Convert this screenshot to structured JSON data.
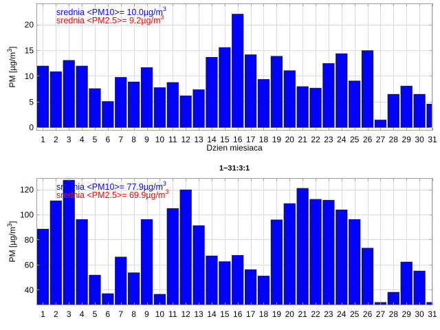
{
  "chart_data": [
    {
      "type": "bar",
      "title": "",
      "xlabel": "Dzien miesiaca",
      "ylabel": "PM [µg/m3]",
      "ylabel_main": "PM [µg/m",
      "ylabel_sup": "3",
      "ylabel_end": "]",
      "xlim": [
        0.5,
        31
      ],
      "ylim": [
        -0.65,
        24.1
      ],
      "grid": true,
      "yticks": [
        0,
        5,
        10,
        15,
        20
      ],
      "categories": [
        1,
        2,
        3,
        4,
        5,
        6,
        7,
        8,
        9,
        10,
        11,
        12,
        13,
        14,
        15,
        16,
        17,
        18,
        19,
        20,
        21,
        22,
        23,
        24,
        25,
        26,
        27,
        28,
        29,
        30,
        31
      ],
      "bar_color": "#0000ff",
      "values": [
        11.9,
        10.8,
        13.0,
        11.9,
        7.5,
        5.0,
        9.7,
        8.8,
        11.6,
        7.7,
        8.7,
        6.1,
        7.3,
        13.6,
        15.5,
        22.0,
        14.1,
        9.3,
        13.8,
        11.0,
        7.9,
        7.6,
        12.4,
        14.3,
        9.0,
        14.9,
        1.4,
        6.4,
        8.0,
        6.4,
        4.5
      ],
      "annotations": [
        {
          "text": "srednia <PM10>= 10.0µg/m",
          "sup": "3",
          "color": "#0000ff"
        },
        {
          "text": "srednia <PM2.5>= 9.2µg/m",
          "sup": "3",
          "color": "#ff0000"
        }
      ]
    },
    {
      "type": "bar",
      "title": "1−31:3:1",
      "xlabel": "",
      "ylabel": "PM [µg/m3]",
      "ylabel_main": "PM [µg/m",
      "ylabel_sup": "3",
      "ylabel_end": "]",
      "xlim": [
        0.5,
        31
      ],
      "ylim": [
        27.5,
        129.2
      ],
      "grid": true,
      "yticks": [
        40,
        60,
        80,
        100,
        120
      ],
      "categories": [
        1,
        2,
        3,
        4,
        5,
        6,
        7,
        8,
        9,
        10,
        11,
        12,
        13,
        14,
        15,
        16,
        17,
        18,
        19,
        20,
        21,
        22,
        23,
        24,
        25,
        26,
        27,
        28,
        29,
        30,
        31
      ],
      "bar_color": "#0000ff",
      "values": [
        88.3,
        110.9,
        127.4,
        96.0,
        51.5,
        36.7,
        66.0,
        53.4,
        96.0,
        36.2,
        104.8,
        119.7,
        91.1,
        66.9,
        62.3,
        67.3,
        55.9,
        50.8,
        95.7,
        108.7,
        120.9,
        112.1,
        111.4,
        103.7,
        96.0,
        73.1,
        29.7,
        37.8,
        62.0,
        54.8,
        29.7
      ],
      "annotations": [
        {
          "text": "srednia <PM10>= 77.9µg/m",
          "sup": "3",
          "color": "#0000ff"
        },
        {
          "text": "srednia <PM2.5>= 69.9µg/m",
          "sup": "3",
          "color": "#ff0000"
        }
      ]
    }
  ]
}
